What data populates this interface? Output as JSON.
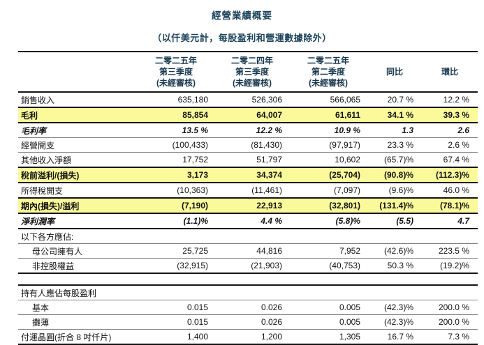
{
  "title": "經營業績概要",
  "subtitle": "（以仟美元計，每股盈利和營運數據除外）",
  "colors": {
    "heading_text": "#1d445c",
    "highlight_row_background": "#fafa9b",
    "body_text": "#111111",
    "rule_dark": "#141414",
    "rule_light": "#7f7f7f"
  },
  "header": {
    "columns": [
      {
        "lines": [
          "二零二五年",
          "第三季度",
          "(未經審核)"
        ]
      },
      {
        "lines": [
          "二零二四年",
          "第三季度",
          "(未經審核)"
        ]
      },
      {
        "lines": [
          "二零二五年",
          "第二季度",
          "(未經審核)"
        ]
      },
      {
        "lines": [
          "同比"
        ]
      },
      {
        "lines": [
          "環比"
        ]
      }
    ]
  },
  "rows": [
    {
      "label": "銷售收入",
      "style": "normal",
      "indent": false,
      "values": [
        "635,180",
        "526,306",
        "566,065",
        "20.7 %",
        "12.2 %"
      ]
    },
    {
      "label": "毛利",
      "style": "highlight",
      "indent": false,
      "values": [
        "85,854",
        "64,007",
        "61,611",
        "34.1 %",
        "39.3 %"
      ]
    },
    {
      "label": "毛利率",
      "style": "italic",
      "indent": false,
      "values": [
        "13.5 %",
        "12.2 %",
        "10.9 %",
        "1.3",
        "2.6"
      ]
    },
    {
      "label": "經營開支",
      "style": "normal",
      "indent": false,
      "values": [
        "(100,433)",
        "(81,430)",
        "(97,917)",
        "23.3 %",
        "2.6 %"
      ]
    },
    {
      "label": "其他收入淨額",
      "style": "normal",
      "indent": false,
      "values": [
        "17,752",
        "51,797",
        "10,602",
        "(65.7)%",
        "67.4 %"
      ]
    },
    {
      "label": "稅前溢利/(損失)",
      "style": "highlight",
      "indent": false,
      "values": [
        "3,173",
        "34,374",
        "(25,704)",
        "(90.8)%",
        "(112.3)%"
      ]
    },
    {
      "label": "所得稅開支",
      "style": "normal",
      "indent": false,
      "values": [
        "(10,363)",
        "(11,461)",
        "(7,097)",
        "(9.6)%",
        "46.0 %"
      ]
    },
    {
      "label": "期內(損失)/溢利",
      "style": "highlight",
      "indent": false,
      "values": [
        "(7,190)",
        "22,913",
        "(32,801)",
        "(131.4)%",
        "(78.1)%"
      ]
    },
    {
      "label": "淨利潤率",
      "style": "italic",
      "indent": false,
      "values": [
        "(1.1)%",
        "4.4 %",
        "(5.8)%",
        "(5.5)",
        "4.7"
      ]
    },
    {
      "label": "以下各方應佔:",
      "style": "section",
      "indent": false,
      "values": [
        "",
        "",
        "",
        "",
        ""
      ]
    },
    {
      "label": "母公司擁有人",
      "style": "normal",
      "indent": true,
      "values": [
        "25,725",
        "44,816",
        "7,952",
        "(42.6)%",
        "223.5 %"
      ]
    },
    {
      "label": "非控股權益",
      "style": "groupend",
      "indent": true,
      "values": [
        "(32,915)",
        "(21,903)",
        "(40,753)",
        "50.3 %",
        "(19.2)%"
      ]
    },
    {
      "label": "",
      "style": "spacer",
      "indent": false,
      "values": [
        "",
        "",
        "",
        "",
        ""
      ]
    },
    {
      "label": "持有人應佔每股盈利",
      "style": "section",
      "indent": false,
      "values": [
        "",
        "",
        "",
        "",
        ""
      ]
    },
    {
      "label": "基本",
      "style": "normal",
      "indent": true,
      "values": [
        "0.015",
        "0.026",
        "0.005",
        "(42.3)%",
        "200.0 %"
      ]
    },
    {
      "label": "攤薄",
      "style": "normal",
      "indent": true,
      "values": [
        "0.015",
        "0.026",
        "0.005",
        "(42.3)%",
        "200.0 %"
      ]
    },
    {
      "label": "付運晶圓(折合 8 吋仟片)",
      "style": "groupend",
      "indent": false,
      "values": [
        "1,400",
        "1,200",
        "1,305",
        "16.7 %",
        "7.3 %"
      ]
    }
  ]
}
